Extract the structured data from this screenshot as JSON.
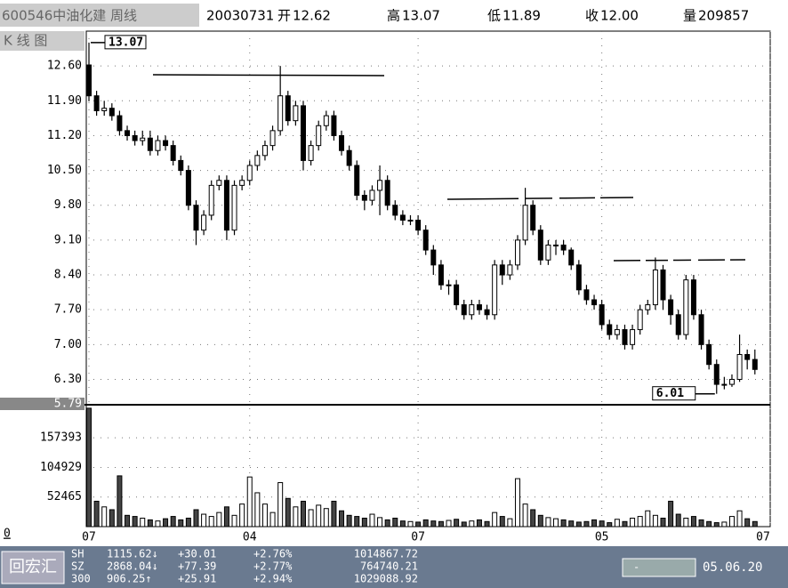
{
  "header": {
    "title": "600546中油化建 周线",
    "date": "20030731",
    "items": [
      {
        "label": "开",
        "text": "12.62"
      },
      {
        "label": "高",
        "text": "13.07"
      },
      {
        "label": "低",
        "text": "11.89"
      },
      {
        "label": "收",
        "text": "12.00"
      },
      {
        "label": "量",
        "text": "209857"
      }
    ]
  },
  "chart_data": [
    {
      "type": "candlestick",
      "title": "K 线 图",
      "open": [
        12.62,
        12.0,
        11.7,
        11.75,
        11.6,
        11.3,
        11.2,
        11.1,
        11.15,
        10.9,
        11.1,
        11.0,
        10.7,
        10.5,
        9.8,
        9.3,
        9.6,
        10.2,
        10.3,
        9.3,
        10.2,
        10.3,
        10.6,
        10.8,
        11.0,
        11.3,
        12.0,
        11.5,
        11.8,
        10.7,
        11.0,
        11.4,
        11.6,
        11.2,
        10.9,
        10.6,
        10.0,
        9.9,
        10.1,
        10.3,
        9.8,
        9.6,
        9.5,
        9.5,
        9.3,
        8.9,
        8.6,
        8.2,
        8.2,
        7.8,
        7.6,
        7.8,
        7.7,
        7.6,
        8.6,
        8.4,
        8.6,
        9.1,
        9.8,
        9.3,
        8.7,
        9.0,
        9.0,
        8.9,
        8.6,
        8.1,
        7.9,
        7.8,
        7.4,
        7.2,
        7.3,
        7.0,
        7.3,
        7.7,
        7.8,
        8.5,
        7.9,
        7.6,
        7.2,
        8.3,
        7.6,
        7.0,
        6.6,
        6.2,
        6.2,
        6.3,
        6.8,
        6.7
      ],
      "high": [
        13.07,
        12.1,
        11.9,
        11.85,
        11.7,
        11.4,
        11.3,
        11.3,
        11.3,
        11.2,
        11.2,
        11.1,
        10.8,
        10.6,
        9.9,
        9.7,
        10.3,
        10.4,
        10.4,
        10.3,
        10.4,
        10.7,
        10.9,
        11.1,
        11.4,
        12.6,
        12.1,
        11.9,
        11.9,
        11.1,
        11.5,
        11.7,
        11.7,
        11.3,
        11.0,
        10.7,
        10.1,
        10.2,
        10.6,
        10.4,
        9.9,
        9.7,
        9.6,
        9.6,
        9.4,
        9.0,
        8.7,
        8.3,
        8.3,
        7.9,
        7.9,
        7.9,
        7.8,
        8.7,
        8.7,
        8.7,
        9.2,
        10.15,
        9.9,
        9.4,
        9.1,
        9.1,
        9.1,
        8.95,
        8.7,
        8.2,
        8.0,
        7.9,
        7.5,
        7.4,
        7.4,
        7.4,
        7.8,
        7.9,
        8.75,
        8.6,
        8.0,
        7.7,
        8.4,
        8.4,
        7.7,
        7.1,
        6.7,
        6.35,
        6.4,
        7.2,
        6.9,
        6.9
      ],
      "low": [
        11.89,
        11.6,
        11.6,
        11.5,
        11.2,
        11.1,
        11.0,
        11.0,
        10.8,
        10.8,
        10.9,
        10.6,
        10.4,
        9.7,
        9.0,
        9.2,
        9.5,
        10.1,
        9.1,
        9.2,
        10.1,
        10.2,
        10.5,
        10.7,
        10.9,
        11.2,
        11.4,
        11.4,
        10.5,
        10.6,
        10.9,
        11.3,
        11.1,
        10.8,
        10.5,
        9.9,
        9.7,
        9.8,
        9.6,
        9.7,
        9.5,
        9.4,
        9.4,
        9.2,
        8.8,
        8.4,
        8.1,
        8.0,
        7.7,
        7.5,
        7.5,
        7.6,
        7.5,
        7.5,
        8.2,
        8.3,
        8.5,
        9.0,
        9.2,
        8.6,
        8.6,
        8.8,
        8.8,
        8.5,
        8.0,
        7.8,
        7.7,
        7.3,
        7.1,
        7.1,
        6.9,
        6.9,
        7.2,
        7.6,
        7.7,
        7.7,
        7.4,
        7.1,
        7.1,
        7.5,
        6.9,
        6.5,
        6.01,
        6.1,
        6.15,
        6.25,
        6.5,
        6.4
      ],
      "close": [
        12.0,
        11.7,
        11.75,
        11.6,
        11.3,
        11.2,
        11.1,
        11.15,
        10.9,
        11.1,
        11.0,
        10.7,
        10.5,
        9.8,
        9.3,
        9.6,
        10.2,
        10.3,
        9.3,
        10.2,
        10.3,
        10.6,
        10.8,
        11.0,
        11.3,
        12.0,
        11.5,
        11.8,
        10.7,
        11.0,
        11.4,
        11.6,
        11.2,
        10.9,
        10.6,
        10.0,
        9.9,
        10.1,
        10.3,
        9.8,
        9.6,
        9.5,
        9.5,
        9.3,
        8.9,
        8.6,
        8.2,
        8.2,
        7.8,
        7.6,
        7.8,
        7.7,
        7.6,
        8.6,
        8.4,
        8.6,
        9.1,
        9.8,
        9.3,
        8.7,
        9.0,
        9.0,
        8.9,
        8.6,
        8.1,
        7.9,
        7.8,
        7.4,
        7.2,
        7.3,
        7.0,
        7.3,
        7.7,
        7.8,
        8.5,
        7.9,
        7.6,
        7.2,
        8.3,
        7.6,
        7.0,
        6.6,
        6.2,
        6.2,
        6.3,
        6.8,
        6.7,
        6.5
      ],
      "xlim": [
        0,
        89
      ],
      "xticks": [
        {
          "value": 0,
          "label": "07"
        },
        {
          "value": 21,
          "label": "04"
        },
        {
          "value": 43,
          "label": "07"
        },
        {
          "value": 67,
          "label": "05"
        },
        {
          "value": 89,
          "label": "07"
        }
      ],
      "ylim": [
        5.79,
        13.3
      ],
      "yticks": [
        5.79,
        {
          "value": 6.3,
          "label": "6.30"
        },
        {
          "value": 7.0,
          "label": "7.00"
        },
        {
          "value": 7.7,
          "label": "7.70"
        },
        {
          "value": 8.4,
          "label": "8.40"
        },
        {
          "value": 9.1,
          "label": "9.10"
        },
        {
          "value": 9.8,
          "label": "9.80"
        },
        {
          "value": 10.5,
          "label": "10.50"
        },
        {
          "value": 11.2,
          "label": "11.20"
        },
        {
          "value": 11.9,
          "label": "11.90"
        },
        {
          "value": 12.6,
          "label": "12.60"
        }
      ],
      "annotations": [
        "13.07",
        "6.01"
      ],
      "grid": true
    },
    {
      "type": "volume",
      "values": [
        209857,
        45000,
        35000,
        30000,
        90000,
        20000,
        18000,
        15000,
        12000,
        10000,
        14000,
        18000,
        12000,
        15000,
        30000,
        22000,
        18000,
        25000,
        35000,
        20000,
        40000,
        88000,
        60000,
        40000,
        25000,
        78000,
        50000,
        35000,
        45000,
        30000,
        38000,
        32000,
        45000,
        28000,
        20000,
        18000,
        15000,
        22000,
        16000,
        12000,
        15000,
        10000,
        9000,
        8000,
        12000,
        10000,
        9000,
        11000,
        13000,
        8000,
        10000,
        12000,
        9000,
        25000,
        18000,
        14000,
        85000,
        40000,
        30000,
        20000,
        16000,
        14000,
        12000,
        10000,
        8000,
        9000,
        12000,
        10000,
        7000,
        13000,
        9000,
        15000,
        18000,
        28000,
        20000,
        15000,
        45000,
        22000,
        15000,
        18000,
        12000,
        9000,
        7000,
        8000,
        18000,
        28000,
        14000,
        9000
      ],
      "xlim": [
        0,
        89
      ],
      "ylim": [
        0,
        216000
      ],
      "yticks": [
        0,
        52465,
        104929,
        157393
      ],
      "grid": true
    }
  ],
  "status": {
    "button": "回宏汇",
    "rows": [
      [
        "SH",
        "1115.62↓",
        "+30.01",
        "+2.76%",
        "1014867.72"
      ],
      [
        "SZ",
        "2868.04↓",
        "+77.39",
        "+2.77%",
        "764740.21"
      ],
      [
        "300",
        "906.25↑",
        "+25.91",
        "+2.94%",
        "1029088.92"
      ]
    ],
    "indicator": "-",
    "date": "05.06.20"
  }
}
